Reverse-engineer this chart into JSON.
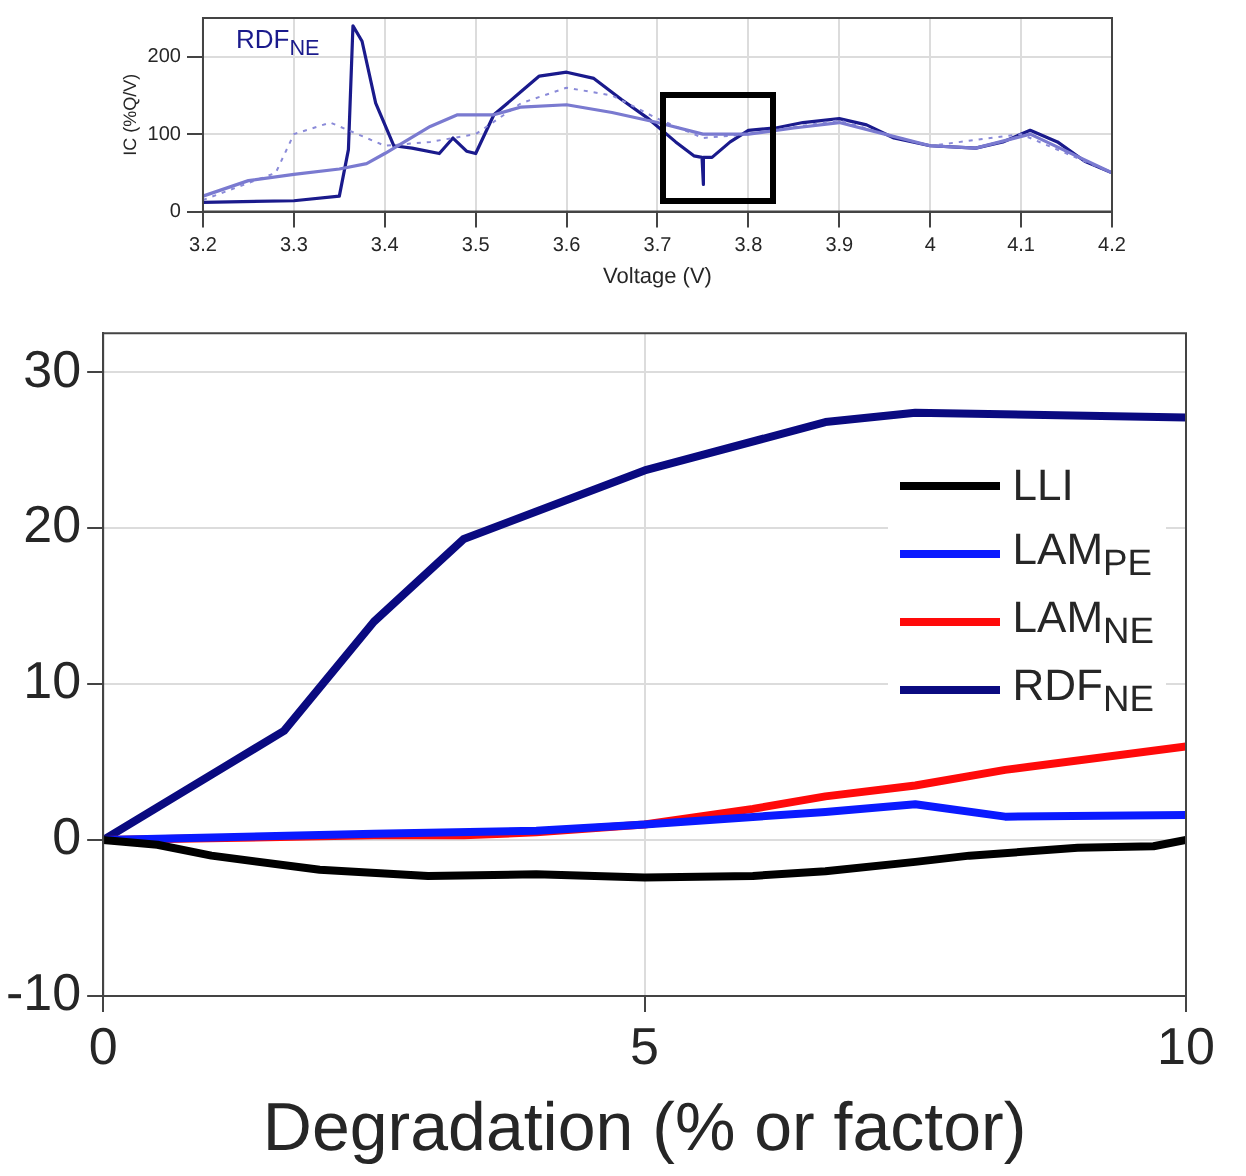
{
  "chart_data": [
    {
      "type": "line",
      "xlabel": "Voltage (V)",
      "ylabel": "IC (%Q/V)",
      "annotations": [
        "RDF$_{NE}$"
      ],
      "xlim": [
        3.2,
        4.2
      ],
      "xticks": [
        3.2,
        3.3,
        3.4,
        3.5,
        3.6,
        3.7,
        3.8,
        3.9,
        4,
        4.1,
        4.2
      ],
      "ylim": [
        0,
        250
      ],
      "yticks": [
        0,
        100,
        200
      ],
      "grid": true,
      "legend": false,
      "series": [
        {
          "color": "#7a7ad0",
          "line_style": "solid",
          "x": [
            3.2,
            3.25,
            3.3,
            3.35,
            3.38,
            3.4,
            3.45,
            3.48,
            3.52,
            3.55,
            3.6,
            3.65,
            3.7,
            3.75,
            3.8,
            3.85,
            3.9,
            3.95,
            4.0,
            4.05,
            4.11,
            4.2
          ],
          "values": [
            20,
            40,
            48,
            55,
            62,
            75,
            110,
            125,
            125,
            135,
            138,
            128,
            115,
            100,
            100,
            108,
            115,
            100,
            85,
            82,
            100,
            50
          ]
        },
        {
          "color": "#8a8ad8",
          "line_style": "dotted",
          "x": [
            3.2,
            3.28,
            3.3,
            3.34,
            3.37,
            3.4,
            3.45,
            3.5,
            3.55,
            3.6,
            3.65,
            3.7,
            3.75,
            3.8,
            3.9,
            3.95,
            4.0,
            4.1,
            4.2
          ],
          "values": [
            15,
            50,
            100,
            115,
            100,
            85,
            90,
            100,
            140,
            160,
            150,
            120,
            95,
            100,
            118,
            100,
            85,
            100,
            50
          ]
        },
        {
          "color": "#1a1a8c",
          "line_style": "solid",
          "x": [
            3.2,
            3.3,
            3.35,
            3.36,
            3.365,
            3.375,
            3.39,
            3.41,
            3.43,
            3.46,
            3.475,
            3.49,
            3.5,
            3.52,
            3.55,
            3.57,
            3.6,
            3.63,
            3.66,
            3.69,
            3.72,
            3.74,
            3.749,
            3.75,
            3.751,
            3.76,
            3.78,
            3.8,
            3.83,
            3.86,
            3.9,
            3.93,
            3.96,
            4.0,
            4.05,
            4.08,
            4.11,
            4.14,
            4.17,
            4.2
          ],
          "values": [
            12,
            14,
            20,
            80,
            240,
            220,
            140,
            85,
            82,
            75,
            95,
            78,
            75,
            125,
            155,
            175,
            180,
            172,
            145,
            120,
            90,
            72,
            70,
            35,
            70,
            70,
            90,
            105,
            108,
            115,
            120,
            112,
            95,
            85,
            82,
            90,
            105,
            90,
            65,
            50
          ]
        }
      ]
    },
    {
      "type": "line",
      "xlabel": "Degradation (% or factor)",
      "xlim": [
        0,
        10
      ],
      "xticks": [
        0,
        5,
        10
      ],
      "ylim": [
        -10,
        32.5
      ],
      "yticks": [
        -10,
        0,
        10,
        20,
        30
      ],
      "grid": true,
      "legend": "top right",
      "series": [
        {
          "name": "LLI",
          "color": "#000000",
          "x": [
            0,
            0.5,
            1,
            2,
            3,
            4,
            5,
            6,
            6.67,
            7.5,
            8,
            9,
            9.7,
            10
          ],
          "values": [
            0,
            -0.3,
            -1,
            -1.9,
            -2.3,
            -2.2,
            -2.4,
            -2.3,
            -2,
            -1.4,
            -1,
            -0.5,
            -0.4,
            0
          ]
        },
        {
          "name": "LAM$_{PE}$",
          "color": "#0a1aff",
          "x": [
            0,
            2.5,
            4,
            5,
            6.67,
            7.5,
            8.33,
            10
          ],
          "values": [
            0,
            0.4,
            0.6,
            1,
            1.8,
            2.3,
            1.5,
            1.6
          ]
        },
        {
          "name": "LAM$_{NE}$",
          "color": "#ff0a0a",
          "x": [
            0,
            2.5,
            3.33,
            4,
            5,
            6,
            6.67,
            7.5,
            8.33,
            10
          ],
          "values": [
            0,
            0.3,
            0.3,
            0.5,
            1,
            2,
            2.8,
            3.5,
            4.5,
            6
          ]
        },
        {
          "name": "RDF$_{NE}$",
          "color": "#0a0a80",
          "x": [
            0,
            1.67,
            2.5,
            3.33,
            5,
            6.67,
            7.5,
            10
          ],
          "values": [
            0,
            7,
            14,
            19.3,
            23.7,
            26.8,
            27.4,
            27.1
          ]
        }
      ]
    }
  ]
}
